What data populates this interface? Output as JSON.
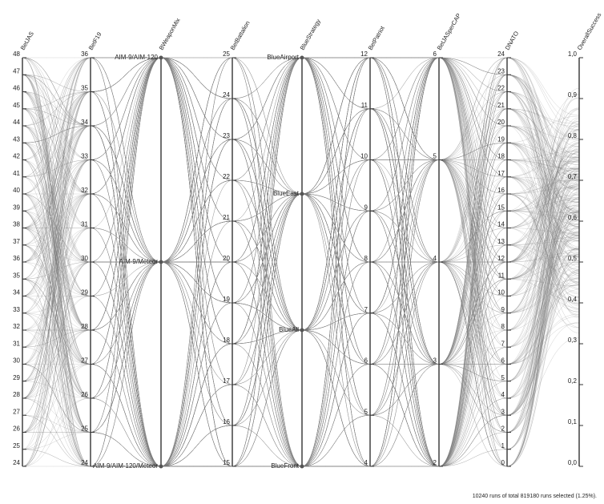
{
  "chart_data": {
    "type": "parallel",
    "axes": [
      {
        "name": "BetJAS",
        "ylim": [
          24,
          48
        ],
        "yticks": [
          24,
          25,
          26,
          27,
          28,
          29,
          30,
          31,
          32,
          33,
          34,
          35,
          36,
          37,
          38,
          39,
          40,
          41,
          42,
          43,
          44,
          45,
          46,
          47,
          48
        ]
      },
      {
        "name": "BetF19",
        "ylim": [
          24,
          36
        ],
        "yticks": [
          24,
          25,
          26,
          27,
          28,
          29,
          30,
          31,
          32,
          33,
          34,
          35,
          36
        ]
      },
      {
        "name": "BWeaponMix",
        "categories": [
          "AIM-9/AIM-120",
          "AIM-9/Meteor",
          "AIM-9/AIM-120/Meteor"
        ]
      },
      {
        "name": "BetBattalion",
        "ylim": [
          15,
          25
        ],
        "yticks": [
          15,
          16,
          17,
          18,
          19,
          20,
          21,
          22,
          23,
          24,
          25
        ]
      },
      {
        "name": "BlueStrategy",
        "categories": [
          "BlueAirport",
          "BlueEast",
          "BlueAll",
          "BlueFront"
        ]
      },
      {
        "name": "BetPatriot",
        "ylim": [
          4,
          12
        ],
        "yticks": [
          4,
          5,
          6,
          7,
          8,
          9,
          10,
          11,
          12
        ]
      },
      {
        "name": "BetJASperCAP",
        "ylim": [
          2,
          6
        ],
        "yticks": [
          2,
          3,
          4,
          5,
          6
        ]
      },
      {
        "name": "DNATO",
        "ylim": [
          0,
          24
        ],
        "yticks": [
          0,
          1,
          2,
          3,
          4,
          5,
          6,
          7,
          8,
          9,
          10,
          11,
          12,
          13,
          14,
          15,
          16,
          17,
          18,
          19,
          20,
          21,
          22,
          23,
          24
        ]
      },
      {
        "name": "OverallSuccess",
        "ylim": [
          0,
          1
        ],
        "yticks": [
          {
            "value": 0,
            "label": "0,0"
          },
          {
            "value": 0.1,
            "label": "0,1"
          },
          {
            "value": 0.2,
            "label": "0,2"
          },
          {
            "value": 0.3,
            "label": "0,3"
          },
          {
            "value": 0.4,
            "label": "0,4"
          },
          {
            "value": 0.5,
            "label": "0,5"
          },
          {
            "value": 0.6,
            "label": "0,6"
          },
          {
            "value": 0.7,
            "label": "0,7"
          },
          {
            "value": 0.8,
            "label": "0,8"
          },
          {
            "value": 0.9,
            "label": "0,9"
          },
          {
            "value": 1,
            "label": "1,0"
          }
        ]
      }
    ],
    "footer": "10240 runs of total 819180 runs selected (1.25%)."
  }
}
